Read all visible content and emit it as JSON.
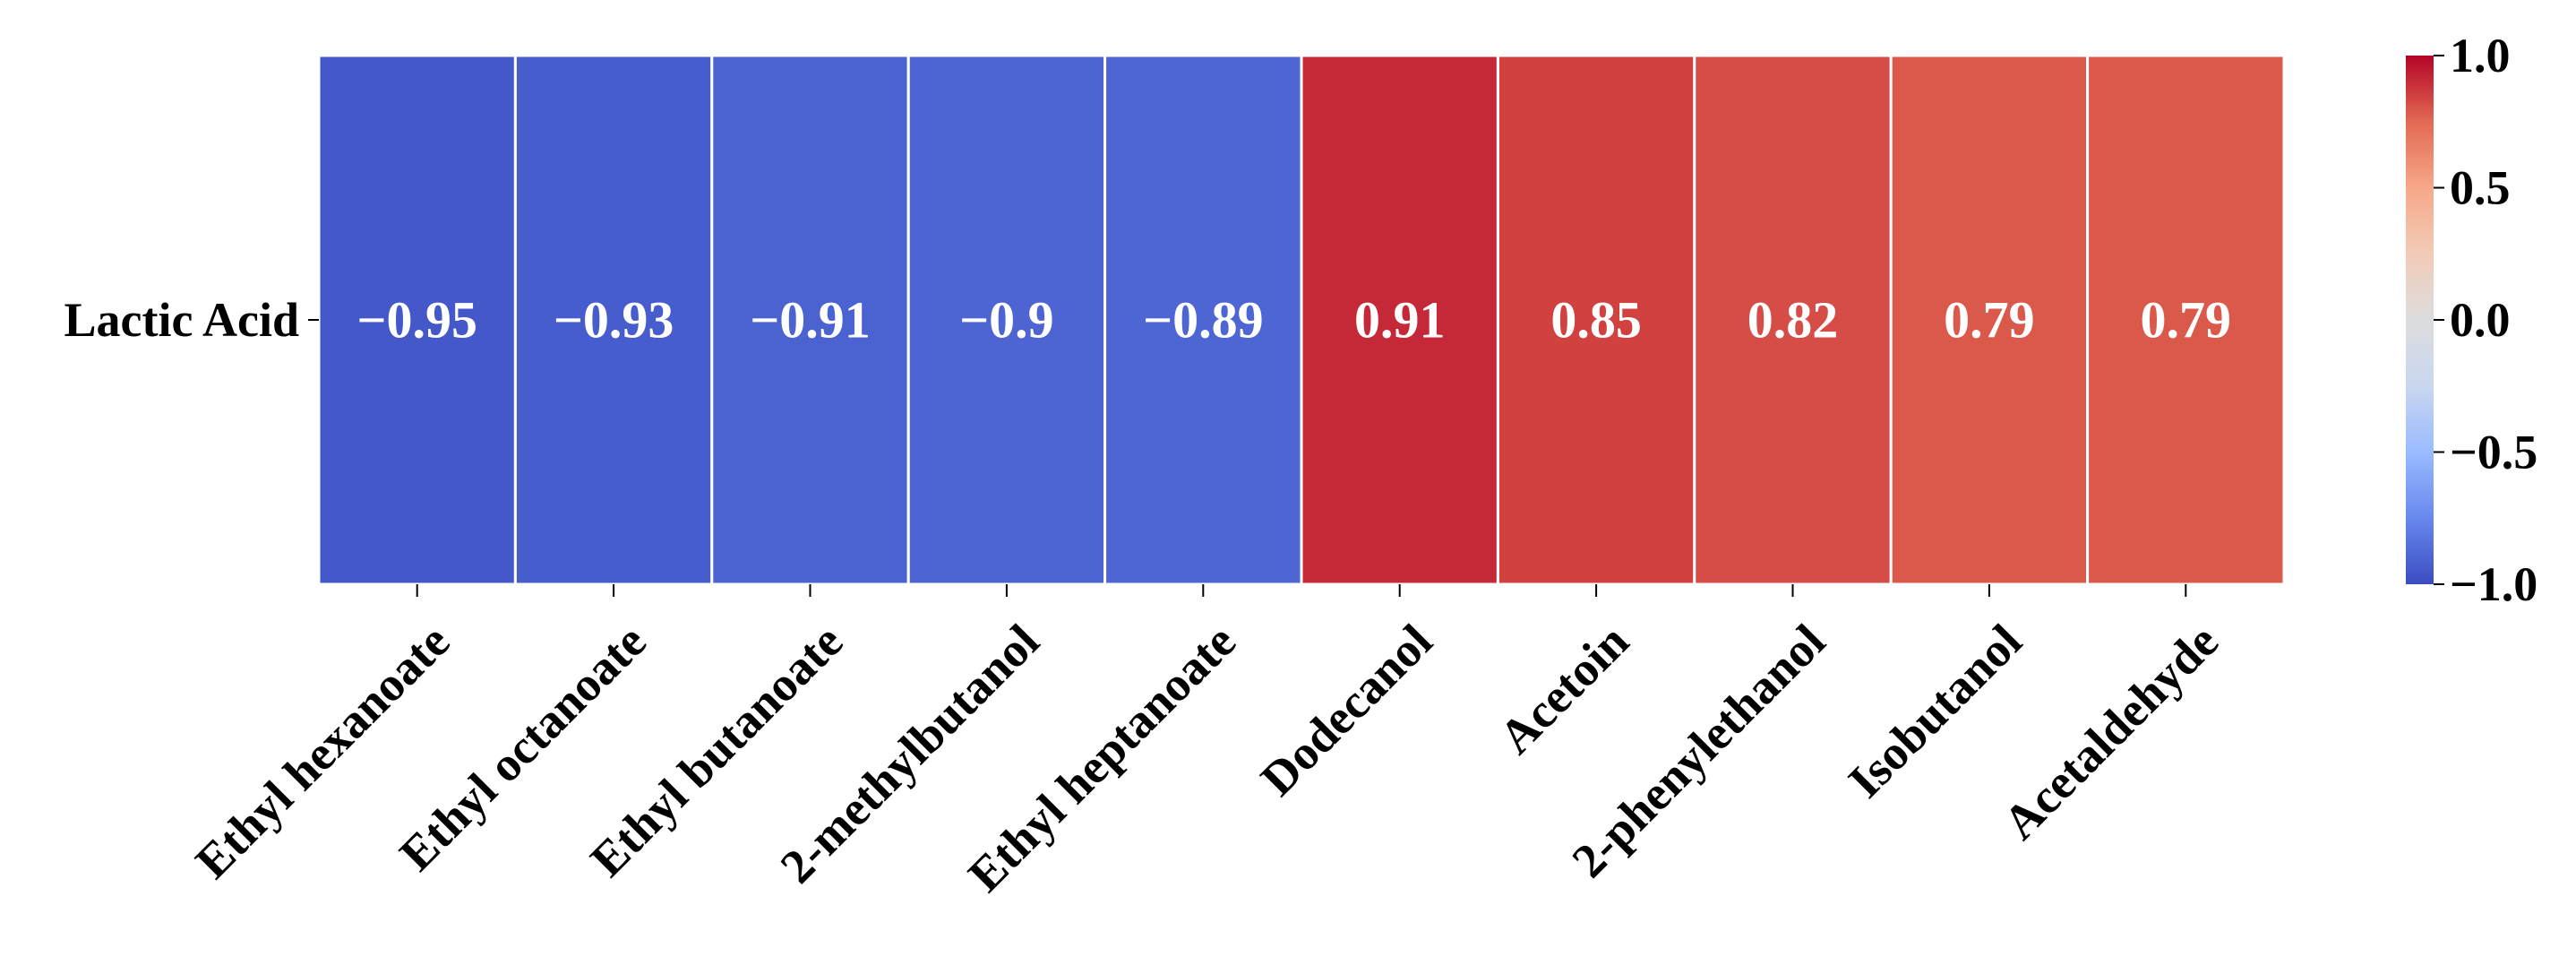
{
  "chart_data": {
    "type": "heatmap",
    "title": "",
    "rows": [
      "Lactic Acid"
    ],
    "columns": [
      "Ethyl hexanoate",
      "Ethyl octanoate",
      "Ethyl butanoate",
      "2-methylbutanol",
      "Ethyl heptanoate",
      "Dodecanol",
      "Acetoin",
      "2-phenylethanol",
      "Isobutanol",
      "Acetaldehyde"
    ],
    "values": [
      [
        -0.95,
        -0.93,
        -0.91,
        -0.9,
        -0.89,
        0.91,
        0.85,
        0.82,
        0.79,
        0.79
      ]
    ],
    "cell_labels": [
      [
        "−0.95",
        "−0.93",
        "−0.91",
        "−0.9",
        "−0.89",
        "0.91",
        "0.85",
        "0.82",
        "0.79",
        "0.79"
      ]
    ],
    "colormap": "coolwarm",
    "colormap_stops": [
      "#3b4cc0",
      "#6788ee",
      "#9abbff",
      "#c9d7f0",
      "#dddddd",
      "#f2cbb7",
      "#f7a889",
      "#e26952",
      "#b40426"
    ],
    "vmin": -1.0,
    "vmax": 1.0,
    "colorbar": {
      "ticks": [
        1.0,
        0.5,
        0.0,
        -0.5,
        -1.0
      ],
      "tick_labels": [
        "1.0",
        "0.5",
        "0.0",
        "−0.5",
        "−1.0"
      ]
    },
    "annotation_color": "#ffffff",
    "cell_border_color": "#ffffff"
  }
}
